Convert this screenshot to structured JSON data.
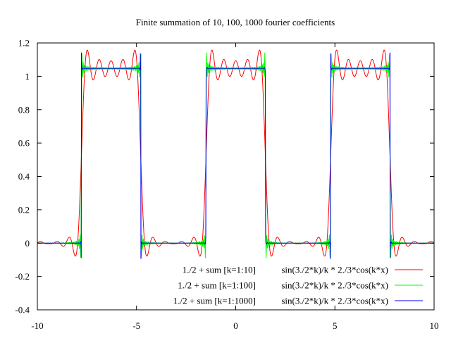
{
  "chart_data": {
    "type": "line",
    "title": "Finite summation of 10, 100, 1000 fourier coefficients",
    "xlabel": "",
    "ylabel": "",
    "xlim": [
      -10,
      10
    ],
    "ylim": [
      -0.4,
      1.2
    ],
    "x_ticks": [
      -10,
      -5,
      0,
      5,
      10
    ],
    "y_ticks": [
      -0.4,
      -0.2,
      0,
      0.2,
      0.4,
      0.6,
      0.8,
      1,
      1.2
    ],
    "x_tick_labels": [
      "-10",
      "-5",
      "0",
      "5",
      "10"
    ],
    "y_tick_labels": [
      "-0.4",
      "-0.2",
      "0",
      "0.2",
      "0.4",
      "0.6",
      "0.8",
      "1",
      "1.2"
    ],
    "grid": false,
    "legend_position": "bottom-right",
    "series": [
      {
        "name": "1./2 + sum [k=1:10]",
        "expression": "sin(3./2*k)/k * 2./3*cos(k*x)",
        "terms": 10,
        "color": "#ff0000"
      },
      {
        "name": "1./2 + sum [k=1:100]",
        "expression": "sin(3./2*k)/k * 2./3*cos(k*x)",
        "terms": 100,
        "color": "#00ff00"
      },
      {
        "name": "1./2 + sum [k=1:1000]",
        "expression": "sin(3./2*k)/k * 2./3*cos(k*x)",
        "terms": 1000,
        "color": "#0000ff"
      }
    ]
  }
}
